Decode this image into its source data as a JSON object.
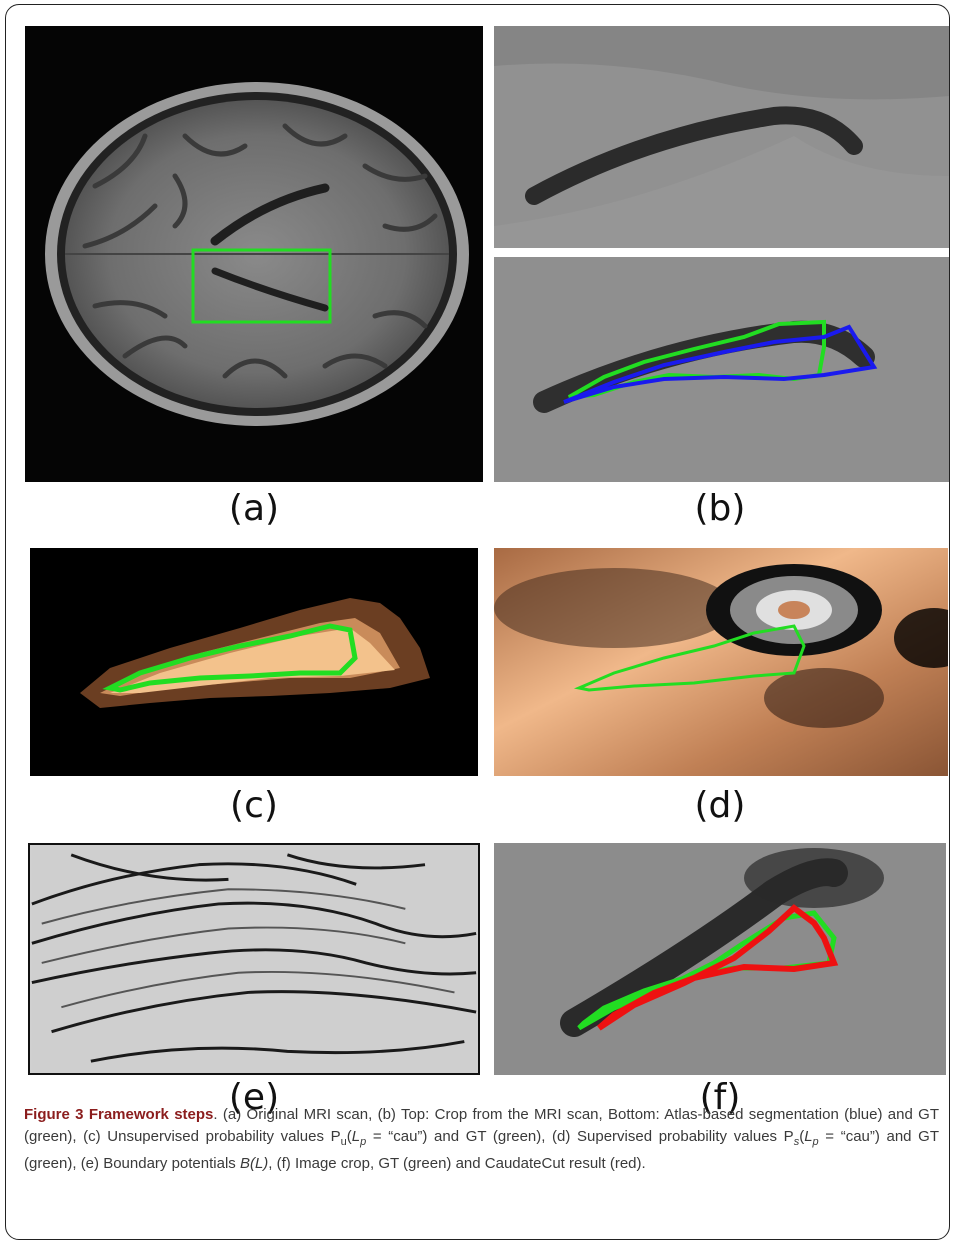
{
  "panels": [
    {
      "id": "a",
      "label": "(a)"
    },
    {
      "id": "b",
      "label": "(b)"
    },
    {
      "id": "c",
      "label": "(c)"
    },
    {
      "id": "d",
      "label": "(d)"
    },
    {
      "id": "e",
      "label": "(e)"
    },
    {
      "id": "f",
      "label": "(f)"
    }
  ],
  "caption": {
    "title": "Figure 3 Framework steps",
    "p1": ". (a) Original MRI scan, (b) Top: Crop from the MRI scan, Bottom: Atlas-based segmentation (blue) and GT (green), (c) Unsupervised probability values P",
    "u_sub": "u",
    "p2": "(",
    "Lp_L": "L",
    "Lp_p": "p",
    "p3": " = “cau”) and GT (green), (d) Supervised probability values P",
    "s_sub": "s",
    "p4": "(",
    "p5": " = “cau”) and GT (green), (e) Boundary potentials ",
    "BL": "B(L)",
    "p6": ", (f) Image crop, GT (green) and CaudateCut result (red)."
  },
  "colors": {
    "gt": "#22dd22",
    "atlas": "#1a1aee",
    "result": "#ee1111",
    "caption_title": "#8b1d1d"
  }
}
